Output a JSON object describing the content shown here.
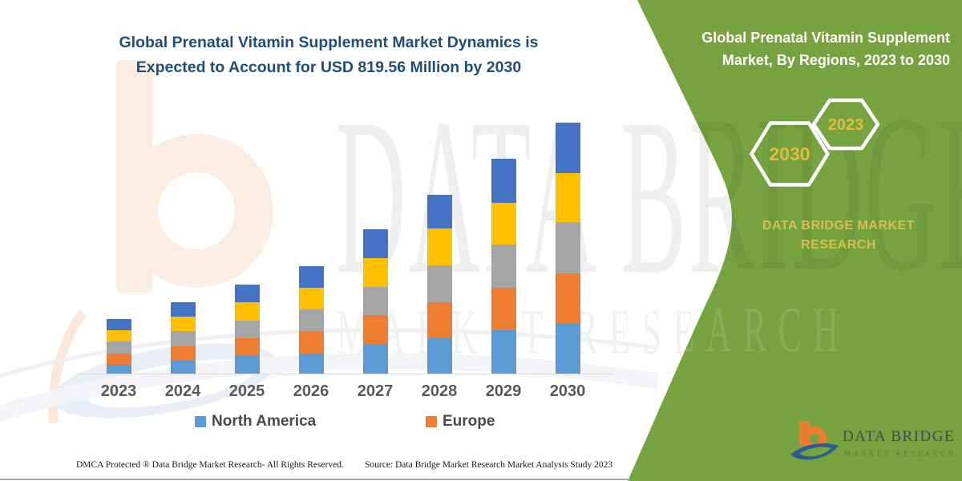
{
  "left_panel": {
    "title_line1": "Global Prenatal Vitamin Supplement Market Dynamics is",
    "title_line2": "Expected to Account for USD 819.56 Million by 2030",
    "footer_left": "DMCA Protected ® Data Bridge Market Research-  All Rights Reserved.",
    "footer_right": "Source: Data Bridge Market Research  Market Analysis Study 2023"
  },
  "chart_data": {
    "type": "bar",
    "stacked": true,
    "title": "Global Prenatal Vitamin Supplement Market Dynamics is Expected to Account for USD 819.56 Million by 2030",
    "units": "USD Million (estimated from bar heights; 2030 total labeled as 819.56)",
    "categories": [
      "2023",
      "2024",
      "2025",
      "2026",
      "2027",
      "2028",
      "2029",
      "2030"
    ],
    "series": [
      {
        "name": "North America",
        "color": "#5B9BD5",
        "in_legend": true,
        "values": [
          29,
          44,
          59,
          66,
          94,
          116,
          142,
          164
        ]
      },
      {
        "name": "Europe",
        "color": "#ED7D31",
        "in_legend": true,
        "values": [
          37,
          46,
          57,
          72,
          96,
          118,
          137,
          164
        ]
      },
      {
        "name": "",
        "color": "#A5A5A5",
        "in_legend": false,
        "values": [
          38,
          48,
          58,
          72,
          92,
          120,
          142,
          168
        ]
      },
      {
        "name": "",
        "color": "#FFC000",
        "in_legend": false,
        "values": [
          37,
          48,
          59,
          71,
          96,
          119,
          137,
          159
        ]
      },
      {
        "name": "",
        "color": "#4472C4",
        "in_legend": false,
        "values": [
          37,
          47,
          58,
          70,
          92,
          111,
          144,
          164.56
        ]
      }
    ],
    "totals": [
      178,
      233,
      291,
      351,
      470,
      584,
      702,
      819.56
    ],
    "ylim": [
      0,
      850
    ],
    "grid": false,
    "legend_position": "bottom",
    "y_axis_shown": false
  },
  "right_panel": {
    "title_line1": "Global Prenatal Vitamin Supplement",
    "title_line2": "Market, By Regions, 2023 to 2030",
    "hexagon_back_label": "2030",
    "hexagon_front_label": "2023",
    "brand_line1": "DATA BRIDGE MARKET",
    "brand_line2": "RESEARCH",
    "logo_text": "DATA BRIDGE",
    "logo_subtext": "MARKET RESEARCH",
    "background_color": "#76A23F",
    "hexagon_year_color": "#E2BD3B"
  },
  "watermark": {
    "line1": "DATA BRIDGE",
    "line2": "MARKET RESEARCH"
  },
  "colors": {
    "title_navy": "#1F4E79",
    "axis_label_gray": "#595959",
    "green_panel": "#76A23F",
    "brand_yellow": "#D7C14E",
    "logo_orange": "#EE7B2F",
    "logo_blue": "#2E5A94"
  }
}
